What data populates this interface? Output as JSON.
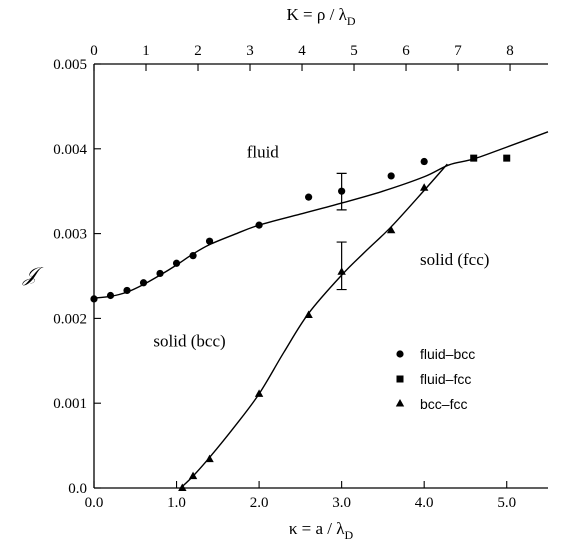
{
  "chart_data": {
    "type": "scatter",
    "title": "",
    "xlabel": "κ = a / λ_D",
    "ylabel": "𝒥",
    "top_xlabel": "K = ρ / λ_D",
    "xlim": [
      0.0,
      5.5
    ],
    "ylim": [
      0.0,
      0.005
    ],
    "top_xlim": [
      0,
      8.73
    ],
    "x_ticks": [
      0.0,
      1.0,
      2.0,
      3.0,
      4.0,
      5.0
    ],
    "x_tick_labels": [
      "0.0",
      "1.0",
      "2.0",
      "3.0",
      "4.0",
      "5.0"
    ],
    "y_ticks": [
      0.0,
      0.001,
      0.002,
      0.003,
      0.004,
      0.005
    ],
    "y_tick_labels": [
      "0.0",
      "0.001",
      "0.002",
      "0.003",
      "0.004",
      "0.005"
    ],
    "top_ticks": [
      0,
      1,
      2,
      3,
      4,
      5,
      6,
      7,
      8
    ],
    "top_tick_labels": [
      "0",
      "1",
      "2",
      "3",
      "4",
      "5",
      "6",
      "7",
      "8"
    ],
    "grid": false,
    "legend_position": "center-right",
    "series": [
      {
        "name": "fluid–bcc",
        "marker": "circle",
        "points": [
          [
            0.0,
            0.00223
          ],
          [
            0.2,
            0.00227
          ],
          [
            0.4,
            0.00233
          ],
          [
            0.6,
            0.00242
          ],
          [
            0.8,
            0.00253
          ],
          [
            1.0,
            0.00265
          ],
          [
            1.2,
            0.00274
          ],
          [
            1.4,
            0.00291
          ],
          [
            2.0,
            0.0031
          ],
          [
            2.6,
            0.00343
          ],
          [
            3.0,
            0.0035
          ],
          [
            3.6,
            0.00368
          ],
          [
            4.0,
            0.00385
          ]
        ]
      },
      {
        "name": "fluid–fcc",
        "marker": "square",
        "points": [
          [
            4.6,
            0.00389
          ],
          [
            5.0,
            0.00389
          ]
        ]
      },
      {
        "name": "bcc–fcc",
        "marker": "triangle",
        "points": [
          [
            1.07,
            0.0
          ],
          [
            1.2,
            0.00014
          ],
          [
            1.4,
            0.00034
          ],
          [
            2.0,
            0.00111
          ],
          [
            2.6,
            0.00204
          ],
          [
            3.0,
            0.00255
          ],
          [
            3.6,
            0.00304
          ],
          [
            4.0,
            0.00354
          ]
        ]
      }
    ],
    "curves": [
      {
        "id": "fluid-solid-boundary",
        "points": [
          [
            0.0,
            0.00224
          ],
          [
            0.2,
            0.00226
          ],
          [
            0.4,
            0.00231
          ],
          [
            0.6,
            0.0024
          ],
          [
            0.8,
            0.00251
          ],
          [
            1.0,
            0.00263
          ],
          [
            1.2,
            0.00276
          ],
          [
            1.4,
            0.00287
          ],
          [
            1.7,
            0.00299
          ],
          [
            2.0,
            0.0031
          ],
          [
            2.5,
            0.00323
          ],
          [
            3.0,
            0.00336
          ],
          [
            3.5,
            0.0035
          ],
          [
            4.0,
            0.00367
          ],
          [
            4.3,
            0.00381
          ],
          [
            4.6,
            0.00388
          ],
          [
            5.0,
            0.00402
          ],
          [
            5.5,
            0.0042
          ]
        ]
      },
      {
        "id": "bcc-fcc-boundary",
        "points": [
          [
            1.05,
            0.0
          ],
          [
            1.2,
            0.00014
          ],
          [
            1.4,
            0.00036
          ],
          [
            1.7,
            0.00072
          ],
          [
            2.0,
            0.00111
          ],
          [
            2.3,
            0.0016
          ],
          [
            2.6,
            0.00206
          ],
          [
            3.0,
            0.00251
          ],
          [
            3.3,
            0.0028
          ],
          [
            3.6,
            0.00308
          ],
          [
            4.0,
            0.00351
          ],
          [
            4.28,
            0.00382
          ]
        ]
      }
    ],
    "error_bars": [
      {
        "x": 3.0,
        "y": 0.0035,
        "ylow": 0.00328,
        "yhigh": 0.00371
      },
      {
        "x": 3.0,
        "y": 0.00255,
        "ylow": 0.00234,
        "yhigh": 0.0029
      }
    ],
    "annotations": [
      {
        "text": "fluid",
        "x": 1.85,
        "y": 0.0039
      },
      {
        "text": "solid (fcc)",
        "x": 3.95,
        "y": 0.00263
      },
      {
        "text": "solid (bcc)",
        "x": 0.72,
        "y": 0.00167
      }
    ]
  }
}
